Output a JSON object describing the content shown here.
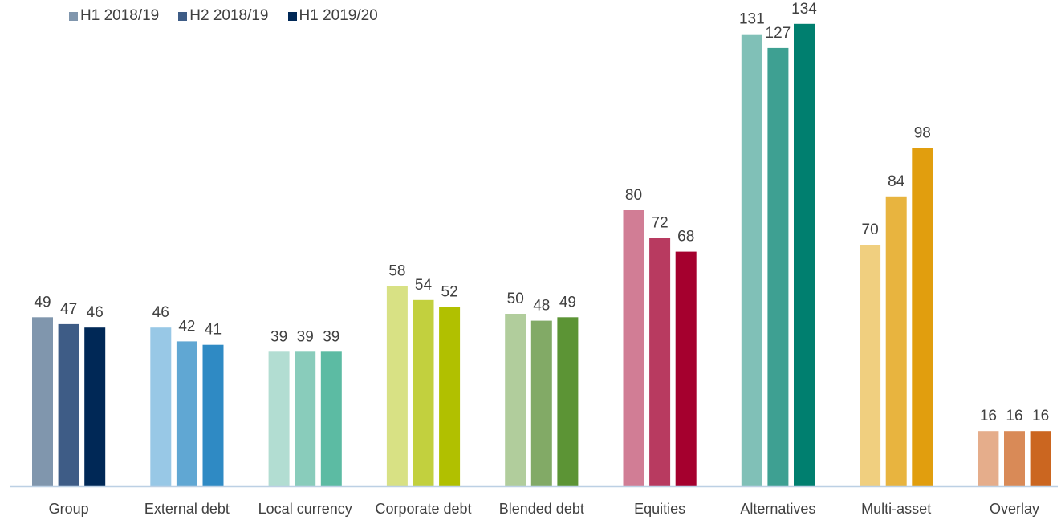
{
  "chart_data": {
    "type": "bar",
    "title": "",
    "xlabel": "",
    "ylabel": "",
    "ylim": [
      0,
      140
    ],
    "grid": false,
    "legend_position": "top-left",
    "categories": [
      "Group",
      "External debt",
      "Local currency",
      "Corporate debt",
      "Blended debt",
      "Equities",
      "Alternatives",
      "Multi-asset",
      "Overlay"
    ],
    "series": [
      {
        "name": "H1 2018/19",
        "values": [
          49,
          46,
          39,
          58,
          50,
          80,
          131,
          70,
          16
        ]
      },
      {
        "name": "H2 2018/19",
        "values": [
          47,
          42,
          39,
          54,
          48,
          72,
          127,
          84,
          16
        ]
      },
      {
        "name": "H1 2019/20",
        "values": [
          46,
          41,
          39,
          52,
          49,
          68,
          134,
          98,
          16
        ]
      }
    ],
    "legend_colors": [
      "#8096ad",
      "#3e5c86",
      "#002856"
    ],
    "bar_colors": [
      [
        "#8096ad",
        "#3e5c86",
        "#002856"
      ],
      [
        "#98c8e6",
        "#60a7d3",
        "#2f8ac4"
      ],
      [
        "#b2ddd2",
        "#89ccbb",
        "#5cbba3"
      ],
      [
        "#d8e184",
        "#c2d03e",
        "#b1c000"
      ],
      [
        "#b1cd9c",
        "#82aa66",
        "#5c9435"
      ],
      [
        "#d17d95",
        "#b83a60",
        "#a5002e"
      ],
      [
        "#80c0b7",
        "#3ea092",
        "#007f6f"
      ],
      [
        "#f0cf7f",
        "#e8b43f",
        "#e19e0e"
      ],
      [
        "#e5ad8b",
        "#d98a57",
        "#cb6620"
      ]
    ],
    "axis_color": "#bcd0e4"
  }
}
